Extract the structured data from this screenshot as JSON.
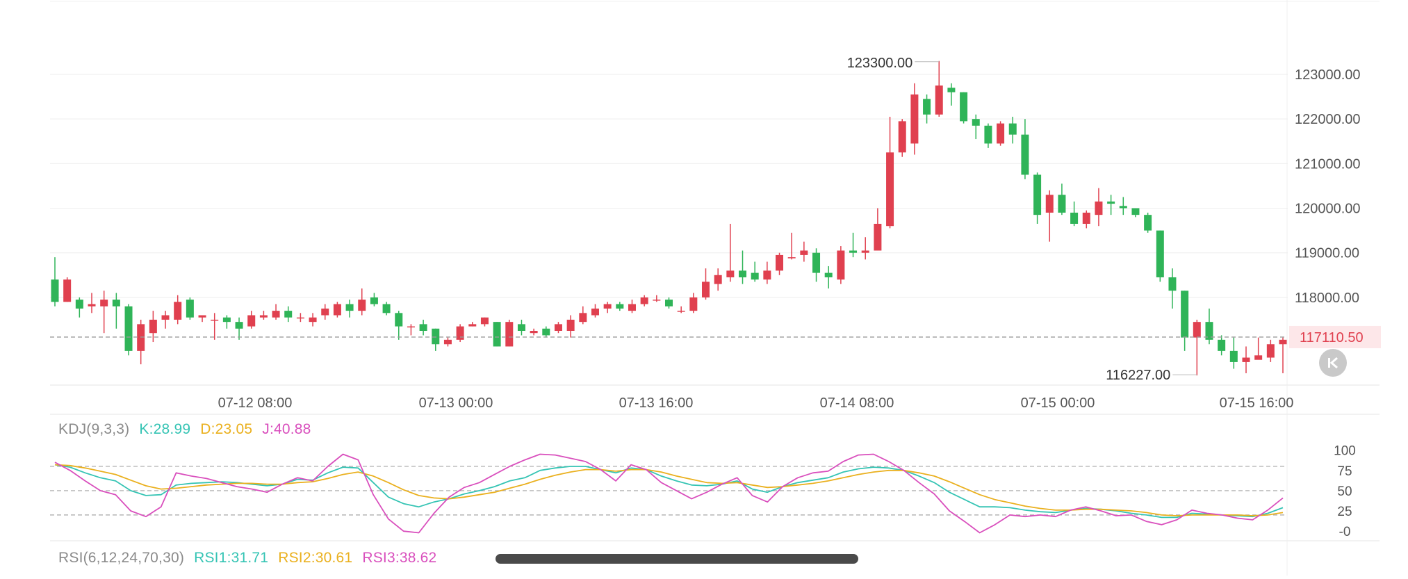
{
  "colors": {
    "up": "#e0404f",
    "down": "#2fb458",
    "k_line": "#35c4b4",
    "d_line": "#eab01e",
    "j_line": "#d94fbd",
    "grid": "#eeeeee",
    "axis_text": "#555555",
    "last_price_bg": "#fde7e9",
    "last_price_text": "#e0404f"
  },
  "icons": {
    "back_to_latest": "double-chevron-left-icon"
  },
  "chart_data": [
    {
      "type": "candlestick",
      "y_ticks": [
        "123000.00",
        "122000.00",
        "121000.00",
        "120000.00",
        "119000.00",
        "118000.00"
      ],
      "ylim": [
        116050,
        124200
      ],
      "x_ticks": [
        "07-12 08:00",
        "07-13 00:00",
        "07-13 16:00",
        "07-14 08:00",
        "07-15 00:00",
        "07-15 16:00"
      ],
      "max_label": "123300.00",
      "min_label": "116227.00",
      "last_price": 117110.5,
      "last_price_label": "117110.50",
      "grid": true,
      "candles": [
        [
          118400,
          117900,
          118900,
          117800
        ],
        [
          117900,
          118400,
          118450,
          117900
        ],
        [
          117950,
          117750,
          118000,
          117550
        ],
        [
          117800,
          117850,
          118100,
          117650
        ],
        [
          117800,
          117950,
          118150,
          117200
        ],
        [
          117950,
          117800,
          118100,
          117300
        ],
        [
          117800,
          116800,
          117850,
          116700
        ],
        [
          116800,
          117400,
          117500,
          116500
        ],
        [
          117200,
          117500,
          117700,
          117000
        ],
        [
          117500,
          117600,
          117700,
          117300
        ],
        [
          117500,
          117900,
          118050,
          117400
        ],
        [
          117950,
          117550,
          118000,
          117500
        ],
        [
          117550,
          117600,
          117600,
          117450
        ],
        [
          117500,
          117500,
          117650,
          117050
        ],
        [
          117550,
          117450,
          117600,
          117300
        ],
        [
          117450,
          117300,
          117550,
          117050
        ],
        [
          117350,
          117600,
          117700,
          117300
        ],
        [
          117550,
          117600,
          117700,
          117500
        ],
        [
          117550,
          117700,
          117850,
          117500
        ],
        [
          117700,
          117550,
          117800,
          117450
        ],
        [
          117550,
          117550,
          117650,
          117450
        ],
        [
          117450,
          117550,
          117650,
          117350
        ],
        [
          117600,
          117750,
          117850,
          117500
        ],
        [
          117600,
          117850,
          117900,
          117550
        ],
        [
          117850,
          117700,
          117950,
          117550
        ],
        [
          117700,
          117950,
          118200,
          117600
        ],
        [
          118000,
          117850,
          118100,
          117800
        ],
        [
          117850,
          117650,
          117900,
          117600
        ],
        [
          117650,
          117350,
          117700,
          117050
        ],
        [
          117350,
          117350,
          117400,
          117150
        ],
        [
          117400,
          117250,
          117500,
          117150
        ],
        [
          117300,
          116950,
          117300,
          116800
        ],
        [
          116950,
          117050,
          117100,
          116900
        ],
        [
          117050,
          117350,
          117400,
          117000
        ],
        [
          117350,
          117400,
          117450,
          117350
        ],
        [
          117400,
          117550,
          117550,
          117350
        ],
        [
          117450,
          116900,
          117450,
          116900
        ],
        [
          116900,
          117450,
          117500,
          116900
        ],
        [
          117400,
          117250,
          117500,
          117150
        ],
        [
          117200,
          117250,
          117300,
          117150
        ],
        [
          117300,
          117150,
          117350,
          117100
        ],
        [
          117250,
          117400,
          117450,
          117200
        ],
        [
          117250,
          117500,
          117600,
          117100
        ],
        [
          117450,
          117650,
          117800,
          117400
        ],
        [
          117600,
          117750,
          117850,
          117550
        ],
        [
          117750,
          117850,
          117900,
          117650
        ],
        [
          117850,
          117750,
          117900,
          117700
        ],
        [
          117700,
          117850,
          117950,
          117650
        ],
        [
          117850,
          118000,
          118050,
          117800
        ],
        [
          117950,
          117950,
          118050,
          117900
        ],
        [
          117950,
          117800,
          118000,
          117750
        ],
        [
          117700,
          117700,
          117800,
          117650
        ],
        [
          117700,
          118000,
          118100,
          117650
        ],
        [
          118000,
          118350,
          118650,
          117950
        ],
        [
          118300,
          118500,
          118650,
          118150
        ],
        [
          118450,
          118600,
          119650,
          118350
        ],
        [
          118600,
          118450,
          119050,
          118300
        ],
        [
          118550,
          118400,
          118800,
          118350
        ],
        [
          118400,
          118600,
          118800,
          118300
        ],
        [
          118600,
          118950,
          119000,
          118500
        ],
        [
          118900,
          118900,
          119450,
          118850
        ],
        [
          118950,
          119050,
          119250,
          118800
        ],
        [
          119000,
          118550,
          119100,
          118350
        ],
        [
          118550,
          118450,
          118700,
          118200
        ],
        [
          118400,
          119050,
          119150,
          118300
        ],
        [
          119050,
          119000,
          119450,
          118900
        ],
        [
          119000,
          119050,
          119350,
          118850
        ],
        [
          119050,
          119650,
          120000,
          119050
        ],
        [
          119600,
          121250,
          122050,
          119550
        ],
        [
          121250,
          121950,
          122000,
          121150
        ],
        [
          121450,
          122550,
          122800,
          121200
        ],
        [
          122450,
          122100,
          122550,
          121900
        ],
        [
          122100,
          122750,
          123300,
          122050
        ],
        [
          122700,
          122600,
          122800,
          122300
        ],
        [
          122600,
          121950,
          122600,
          121900
        ],
        [
          122000,
          121850,
          122100,
          121550
        ],
        [
          121850,
          121450,
          121900,
          121350
        ],
        [
          121450,
          121900,
          121950,
          121400
        ],
        [
          121900,
          121650,
          122050,
          121450
        ],
        [
          121650,
          120750,
          122000,
          120650
        ],
        [
          120750,
          119850,
          120800,
          119650
        ],
        [
          119900,
          120300,
          120400,
          119250
        ],
        [
          120300,
          119900,
          120550,
          119850
        ],
        [
          119900,
          119650,
          120150,
          119600
        ],
        [
          119650,
          119900,
          119950,
          119550
        ],
        [
          119850,
          120150,
          120450,
          119600
        ],
        [
          120150,
          120100,
          120300,
          119850
        ],
        [
          120050,
          120000,
          120250,
          119850
        ],
        [
          120000,
          119850,
          120000,
          119800
        ],
        [
          119850,
          119500,
          119900,
          119450
        ],
        [
          119500,
          118450,
          119500,
          118350
        ],
        [
          118450,
          118150,
          118650,
          117750
        ],
        [
          118150,
          117100,
          118150,
          116800
        ],
        [
          117100,
          117450,
          117500,
          116250
        ],
        [
          117450,
          117050,
          117750,
          116950
        ],
        [
          117050,
          116800,
          117150,
          116700
        ],
        [
          116800,
          116550,
          117100,
          116400
        ],
        [
          116550,
          116650,
          116900,
          116300
        ],
        [
          116600,
          116700,
          117100,
          116650
        ],
        [
          116650,
          116950,
          117050,
          116550
        ],
        [
          116950,
          117050,
          117100,
          116300
        ]
      ]
    },
    {
      "type": "line",
      "title": "KDJ(9,3,3)",
      "y_ticks": [
        "100",
        "75",
        "50",
        "25",
        "-0"
      ],
      "ylim": [
        -5,
        110
      ],
      "reference_lines": [
        80,
        50,
        20
      ],
      "series": [
        {
          "name": "K",
          "label": "K:28.99",
          "values": [
            82,
            79,
            72,
            66,
            62,
            50,
            44,
            45,
            57,
            59,
            60,
            61,
            60,
            58,
            56,
            58,
            64,
            63,
            72,
            79,
            78,
            60,
            42,
            34,
            30,
            36,
            40,
            46,
            50,
            55,
            62,
            66,
            75,
            78,
            80,
            80,
            76,
            72,
            78,
            76,
            68,
            62,
            57,
            56,
            58,
            62,
            52,
            48,
            55,
            60,
            63,
            66,
            73,
            77,
            79,
            78,
            75,
            68,
            60,
            48,
            39,
            30,
            30,
            29,
            26,
            24,
            23,
            26,
            28,
            27,
            25,
            22,
            20,
            17,
            17,
            22,
            21,
            20,
            19,
            18,
            22,
            29
          ]
        },
        {
          "name": "D",
          "label": "D:23.05",
          "values": [
            82,
            81,
            78,
            74,
            70,
            63,
            56,
            52,
            53,
            55,
            57,
            58,
            59,
            59,
            58,
            58,
            60,
            61,
            65,
            70,
            73,
            68,
            60,
            51,
            44,
            41,
            40,
            42,
            45,
            48,
            53,
            58,
            64,
            69,
            73,
            76,
            76,
            74,
            76,
            76,
            73,
            68,
            64,
            60,
            59,
            60,
            57,
            54,
            55,
            57,
            59,
            62,
            66,
            70,
            73,
            75,
            75,
            72,
            68,
            61,
            53,
            45,
            39,
            35,
            31,
            28,
            26,
            26,
            27,
            27,
            26,
            25,
            23,
            20,
            19,
            20,
            20,
            20,
            20,
            19,
            20,
            23
          ]
        },
        {
          "name": "J",
          "label": "J:40.88",
          "values": [
            85,
            75,
            62,
            50,
            45,
            25,
            18,
            30,
            72,
            68,
            65,
            60,
            55,
            52,
            48,
            58,
            66,
            62,
            80,
            95,
            88,
            45,
            15,
            0,
            -2,
            22,
            42,
            54,
            60,
            70,
            80,
            88,
            95,
            94,
            90,
            86,
            76,
            62,
            82,
            76,
            60,
            50,
            40,
            48,
            58,
            66,
            44,
            36,
            55,
            66,
            72,
            74,
            86,
            94,
            95,
            86,
            75,
            60,
            46,
            25,
            12,
            -2,
            8,
            20,
            18,
            20,
            18,
            26,
            30,
            25,
            19,
            20,
            12,
            8,
            14,
            26,
            22,
            20,
            16,
            14,
            26,
            41
          ]
        }
      ]
    },
    {
      "type": "line",
      "title": "RSI(6,12,24,70,30)",
      "series": [
        {
          "name": "RSI1",
          "label": "RSI1:31.71"
        },
        {
          "name": "RSI2",
          "label": "RSI2:30.61"
        },
        {
          "name": "RSI3",
          "label": "RSI3:38.62"
        }
      ]
    }
  ]
}
